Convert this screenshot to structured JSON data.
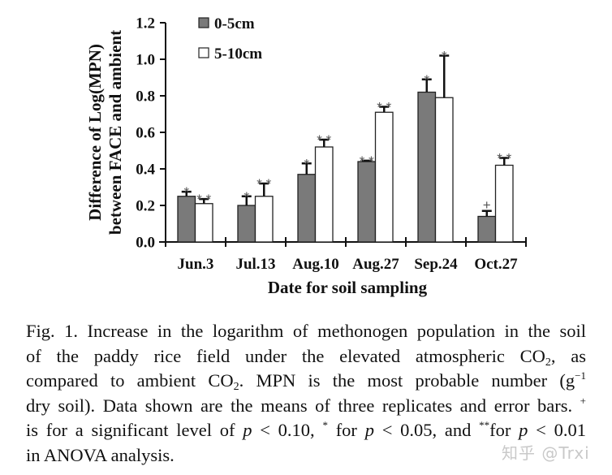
{
  "chart_data": {
    "type": "bar",
    "title": "",
    "xlabel": "Date for soil sampling",
    "ylabel_lines": [
      "Difference of Log(MPN)",
      "between FACE and ambient"
    ],
    "ylim": [
      0,
      1.2
    ],
    "yticks": [
      0.0,
      0.2,
      0.4,
      0.6,
      0.8,
      1.0,
      1.2
    ],
    "ytick_labels": [
      "0.0",
      "0.2",
      "0.4",
      "0.6",
      "0.8",
      "1.0",
      "1.2"
    ],
    "grid": false,
    "legend_position": "top-left",
    "categories": [
      "Jun.3",
      "Jul.13",
      "Aug.10",
      "Aug.27",
      "Sep.24",
      "Oct.27"
    ],
    "series": [
      {
        "name": "0-5cm",
        "color": "#7a7a7a",
        "values": [
          0.25,
          0.2,
          0.37,
          0.44,
          0.82,
          0.14
        ],
        "error": [
          0.025,
          0.05,
          0.06,
          0.005,
          0.07,
          0.03
        ],
        "significance": [
          "*",
          "*",
          "*",
          "**",
          "*",
          "+"
        ]
      },
      {
        "name": "5-10cm",
        "color": "#ffffff",
        "values": [
          0.21,
          0.25,
          0.52,
          0.71,
          0.79,
          0.42
        ],
        "error": [
          0.025,
          0.07,
          0.04,
          0.03,
          0.23,
          0.04
        ],
        "significance": [
          "**",
          "**",
          "**",
          "**",
          "*",
          "**"
        ]
      }
    ]
  },
  "caption": {
    "lines": [
      "Fig. 1.  Increase in the logarithm of methonogen population in the soil",
      "of the paddy rice field under the elevated atmospheric CO",
      "compared to ambient CO",
      "dry soil). Data shown are the means of three replicates and error bars.",
      "is for a significant level of",
      "in ANOVA analysis."
    ],
    "line2_sub": "2",
    "line2_tail": ", as",
    "line3_sub": "2",
    "line3_tail": ". MPN is the most probable number (g",
    "line3_sup": "−1",
    "line4_sup": "+",
    "line5_p1": "p",
    "line5_t1": " < 0.10,",
    "line5_sup1": "*",
    "line5_t2": " for ",
    "line5_p2": "p",
    "line5_t3": " < 0.05, and ",
    "line5_sup2": "**",
    "line5_t4": "for ",
    "line5_p3": "p",
    "line5_t5": " < 0.01"
  },
  "watermark": "知乎 @Trxi"
}
